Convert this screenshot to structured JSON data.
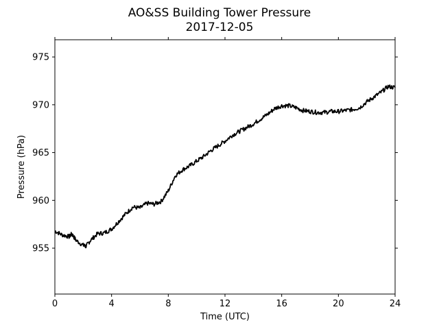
{
  "chart_data": {
    "type": "line",
    "title": "AO&SS Building Tower Pressure",
    "subtitle": "2017-12-05",
    "xlabel": "Time (UTC)",
    "ylabel": "Pressure (hPa)",
    "xlim": [
      0,
      24
    ],
    "ylim": [
      950.2,
      976.8
    ],
    "xticks": [
      0,
      4,
      8,
      12,
      16,
      20,
      24
    ],
    "yticks": [
      955,
      960,
      965,
      970,
      975
    ],
    "grid": false,
    "legend": "none",
    "series": [
      {
        "color": "#000000",
        "x": [
          0,
          0.5,
          1.0,
          1.2,
          1.5,
          2.0,
          2.2,
          2.5,
          3.0,
          3.5,
          4.0,
          4.5,
          5.0,
          5.5,
          6.0,
          6.5,
          7.0,
          7.5,
          8.0,
          8.5,
          9.0,
          9.5,
          10.0,
          10.5,
          11.0,
          11.5,
          12.0,
          12.5,
          13.0,
          13.5,
          14.0,
          14.5,
          15.0,
          15.5,
          16.0,
          16.5,
          17.0,
          17.5,
          18.0,
          18.5,
          19.0,
          19.5,
          20.0,
          20.5,
          21.0,
          21.5,
          22.0,
          22.5,
          23.0,
          23.5,
          24.0
        ],
        "y": [
          956.8,
          956.4,
          956.2,
          956.5,
          955.8,
          955.3,
          955.2,
          955.8,
          956.5,
          956.6,
          957.0,
          957.8,
          958.6,
          959.3,
          959.2,
          959.7,
          959.6,
          959.9,
          961.0,
          962.6,
          963.2,
          963.6,
          964.1,
          964.6,
          965.2,
          965.7,
          966.2,
          966.8,
          967.2,
          967.6,
          968.0,
          968.5,
          969.0,
          969.6,
          969.9,
          969.9,
          969.7,
          969.4,
          969.3,
          969.2,
          969.2,
          969.3,
          969.3,
          969.4,
          969.5,
          969.7,
          970.3,
          970.8,
          971.3,
          971.9,
          971.8
        ]
      }
    ]
  }
}
